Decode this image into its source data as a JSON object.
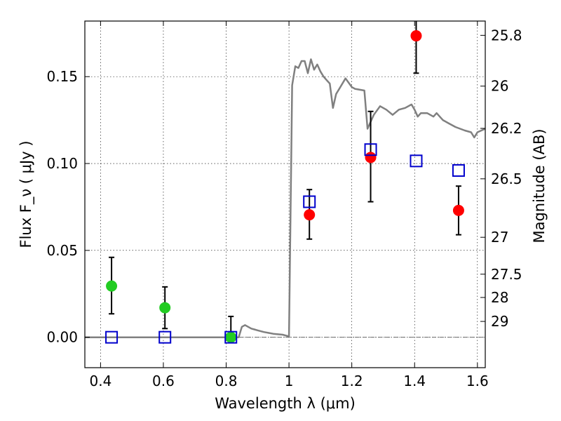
{
  "chart_data": {
    "type": "scatter",
    "title": "",
    "xlabel": "Wavelength  λ (μm)",
    "ylabel": "Flux  F_ν  ( μJy )",
    "ylabel_right": "Magnitude (AB)",
    "xlim": [
      0.35,
      1.625
    ],
    "ylim": [
      -0.0175,
      0.182
    ],
    "grid": true,
    "x_ticks": [
      {
        "value": 0.4,
        "label": "0.4"
      },
      {
        "value": 0.6,
        "label": "0.6"
      },
      {
        "value": 0.8,
        "label": "0.8"
      },
      {
        "value": 1.0,
        "label": "1"
      },
      {
        "value": 1.2,
        "label": "1.2"
      },
      {
        "value": 1.4,
        "label": "1.4"
      },
      {
        "value": 1.6,
        "label": "1.6"
      }
    ],
    "y_ticks": [
      {
        "value": 0.0,
        "label": "0.00"
      },
      {
        "value": 0.05,
        "label": "0.05"
      },
      {
        "value": 0.1,
        "label": "0.10"
      },
      {
        "value": 0.15,
        "label": "0.15"
      }
    ],
    "right_ticks": [
      {
        "value": 25.8,
        "label": "25.8"
      },
      {
        "value": 26.0,
        "label": "26"
      },
      {
        "value": 26.2,
        "label": "26.2"
      },
      {
        "value": 26.5,
        "label": "26.5"
      },
      {
        "value": 27.0,
        "label": "27"
      },
      {
        "value": 27.5,
        "label": "27.5"
      },
      {
        "value": 28.0,
        "label": "28"
      },
      {
        "value": 29.0,
        "label": "29"
      }
    ],
    "colors": {
      "template": "#808080",
      "detected": "#ff0000",
      "undetected": "#22cc22",
      "model": "#0000cc",
      "errorbar": "#000000"
    },
    "template_spectrum": {
      "x": [
        0.35,
        0.84,
        0.85,
        0.86,
        0.87,
        0.88,
        0.89,
        0.9,
        0.92,
        0.95,
        0.98,
        1.0,
        1.005,
        1.01,
        1.02,
        1.03,
        1.04,
        1.05,
        1.06,
        1.07,
        1.08,
        1.09,
        1.1,
        1.11,
        1.12,
        1.13,
        1.14,
        1.15,
        1.16,
        1.18,
        1.2,
        1.21,
        1.24,
        1.25,
        1.27,
        1.29,
        1.31,
        1.33,
        1.35,
        1.37,
        1.39,
        1.4,
        1.41,
        1.42,
        1.44,
        1.46,
        1.47,
        1.49,
        1.51,
        1.53,
        1.56,
        1.58,
        1.59,
        1.6,
        1.625
      ],
      "y": [
        0.0,
        0.0,
        0.006,
        0.007,
        0.006,
        0.005,
        0.0045,
        0.004,
        0.003,
        0.002,
        0.0015,
        0.0005,
        0.07,
        0.145,
        0.156,
        0.155,
        0.159,
        0.159,
        0.152,
        0.16,
        0.154,
        0.157,
        0.153,
        0.15,
        0.148,
        0.146,
        0.132,
        0.14,
        0.143,
        0.149,
        0.144,
        0.143,
        0.142,
        0.12,
        0.128,
        0.133,
        0.131,
        0.128,
        0.131,
        0.132,
        0.134,
        0.131,
        0.127,
        0.129,
        0.129,
        0.127,
        0.129,
        0.125,
        0.123,
        0.121,
        0.119,
        0.118,
        0.115,
        0.118,
        0.12
      ]
    },
    "detected": [
      {
        "x": 1.065,
        "y": 0.0705,
        "err_low": 0.0565,
        "err_high": 0.085
      },
      {
        "x": 1.26,
        "y": 0.1035,
        "err_low": 0.078,
        "err_high": 0.13
      },
      {
        "x": 1.405,
        "y": 0.1735,
        "err_low": 0.152,
        "err_high": 0.185
      },
      {
        "x": 1.54,
        "y": 0.073,
        "err_low": 0.059,
        "err_high": 0.087
      }
    ],
    "undetected": [
      {
        "x": 0.435,
        "y": 0.0295,
        "err_low": 0.0135,
        "err_high": 0.046
      },
      {
        "x": 0.605,
        "y": 0.017,
        "err_low": 0.005,
        "err_high": 0.029
      },
      {
        "x": 0.815,
        "y": 0.0,
        "err_low": 0.0,
        "err_high": 0.012
      }
    ],
    "model_photometry": [
      {
        "x": 0.435,
        "y": 0.0
      },
      {
        "x": 0.605,
        "y": 0.0
      },
      {
        "x": 0.815,
        "y": 0.0
      },
      {
        "x": 1.065,
        "y": 0.078
      },
      {
        "x": 1.26,
        "y": 0.108
      },
      {
        "x": 1.405,
        "y": 0.1015
      },
      {
        "x": 1.54,
        "y": 0.096
      }
    ]
  }
}
